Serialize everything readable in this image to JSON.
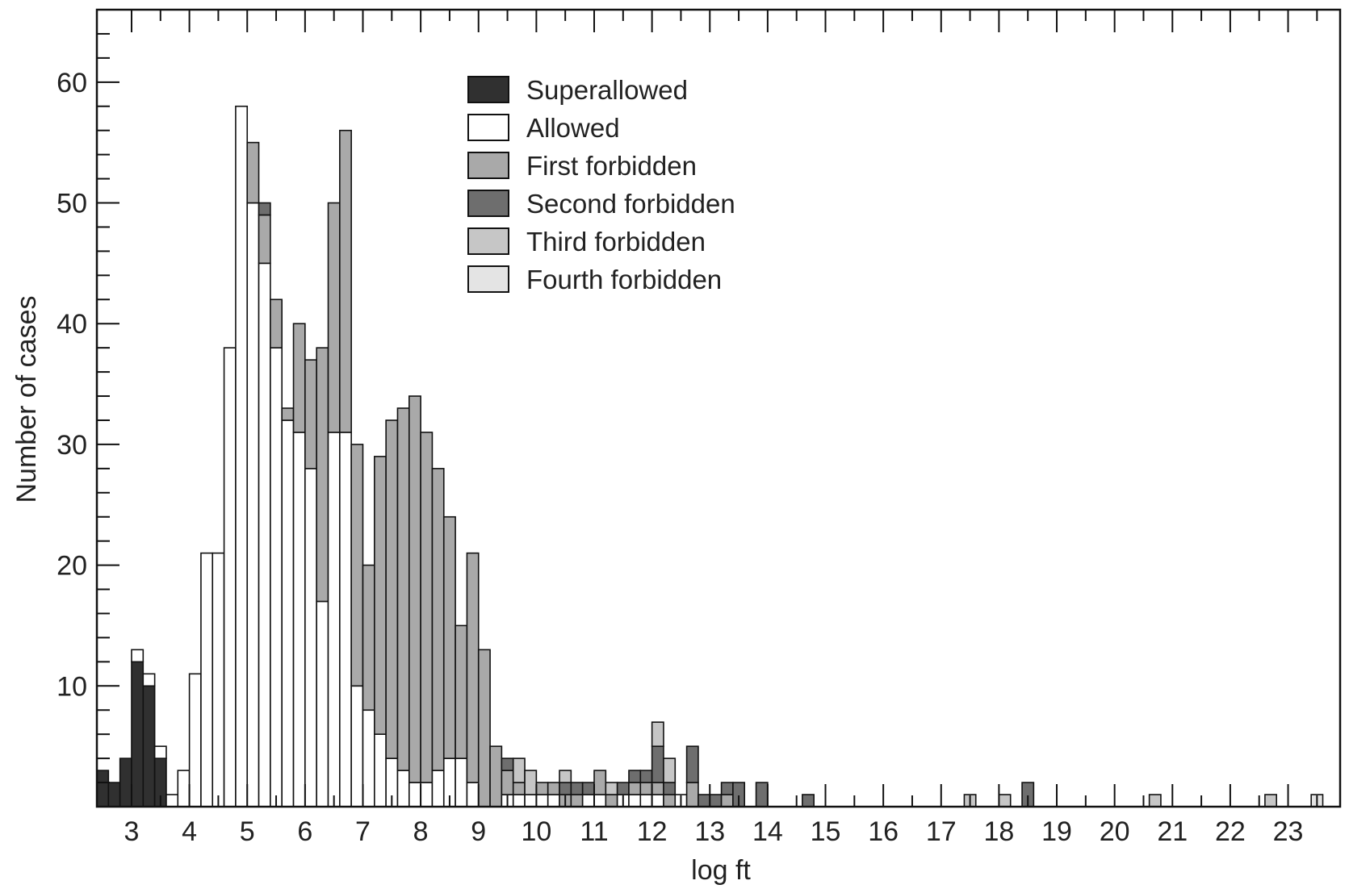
{
  "chart_data": {
    "type": "bar",
    "subtype": "stacked-histogram",
    "title": "",
    "xlabel": "log ft",
    "ylabel": "Number of cases",
    "xlim": [
      2.4,
      23.9
    ],
    "ylim": [
      0,
      66
    ],
    "x_ticks": [
      "3",
      "4",
      "5",
      "6",
      "7",
      "8",
      "9",
      "10",
      "11",
      "12",
      "13",
      "14",
      "15",
      "16",
      "17",
      "18",
      "19",
      "20",
      "21",
      "22",
      "23"
    ],
    "y_ticks": [
      "10",
      "20",
      "30",
      "40",
      "50",
      "60"
    ],
    "bin_width": 0.2,
    "grid": false,
    "legend_position": "top-center",
    "colors": {
      "Superallowed": "#303030",
      "Allowed": "#ffffff",
      "First forbidden": "#a9a9a9",
      "Second forbidden": "#6e6e6e",
      "Third forbidden": "#c6c6c6",
      "Fourth forbidden": "#e4e4e4"
    },
    "series": [
      {
        "name": "Superallowed",
        "x": [
          2.5,
          2.7,
          2.9,
          3.1,
          3.3,
          3.5,
          3.7
        ],
        "values": [
          3,
          2,
          4,
          12,
          10,
          4,
          0
        ]
      },
      {
        "name": "Allowed",
        "x": [
          3.1,
          3.3,
          3.5,
          3.7,
          3.9,
          4.1,
          4.3,
          4.5,
          4.7,
          4.9,
          5.1,
          5.3,
          5.5,
          5.7,
          5.9,
          6.1,
          6.3,
          6.5,
          6.7,
          6.9,
          7.1,
          7.3,
          7.5,
          7.7,
          7.9,
          8.1,
          8.3,
          8.5,
          8.7,
          8.9,
          9.1,
          9.3,
          9.5,
          9.7,
          9.9,
          10.1,
          10.3,
          10.5,
          10.7,
          10.9,
          11.1,
          11.3,
          11.5,
          11.7,
          11.9,
          12.1,
          12.3,
          12.5,
          12.7,
          12.9,
          13.1
        ],
        "values": [
          1,
          1,
          1,
          1,
          3,
          11,
          21,
          21,
          38,
          58,
          50,
          45,
          38,
          32,
          31,
          28,
          17,
          31,
          31,
          10,
          8,
          6,
          4,
          3,
          2,
          2,
          3,
          4,
          4,
          2,
          0,
          0,
          1,
          1,
          1,
          1,
          1,
          0,
          0,
          1,
          1,
          0,
          1,
          1,
          1,
          1,
          0,
          1,
          0,
          0,
          0
        ]
      },
      {
        "name": "First forbidden",
        "x": [
          5.1,
          5.3,
          5.5,
          5.7,
          5.9,
          6.1,
          6.3,
          6.5,
          6.7,
          6.9,
          7.1,
          7.3,
          7.5,
          7.7,
          7.9,
          8.1,
          8.3,
          8.5,
          8.7,
          8.9,
          9.1,
          9.3,
          9.5,
          9.7,
          9.9,
          10.1,
          10.3,
          10.5,
          10.7,
          10.9,
          11.1,
          11.3,
          11.5,
          11.7,
          11.9,
          12.1,
          12.3,
          12.5,
          12.7,
          12.9,
          13.1,
          13.3,
          13.5
        ],
        "values": [
          5,
          4,
          4,
          1,
          9,
          9,
          21,
          19,
          25,
          20,
          12,
          23,
          28,
          30,
          32,
          29,
          25,
          20,
          11,
          19,
          13,
          5,
          2,
          1,
          0,
          1,
          1,
          1,
          1,
          0,
          2,
          1,
          0,
          1,
          1,
          1,
          1,
          0,
          2,
          0,
          0,
          1,
          0
        ]
      },
      {
        "name": "Second forbidden",
        "x": [
          5.3,
          5.5,
          9.5,
          10.5,
          10.7,
          10.9,
          11.1,
          11.5,
          11.7,
          11.9,
          12.1,
          12.3,
          12.5,
          12.7,
          12.9,
          13.1,
          13.3,
          13.5,
          13.9,
          14.7,
          18.5
        ],
        "values": [
          1,
          0,
          1,
          1,
          1,
          1,
          0,
          1,
          1,
          1,
          3,
          1,
          0,
          3,
          1,
          1,
          1,
          2,
          2,
          1,
          2
        ]
      },
      {
        "name": "Third forbidden",
        "x": [
          9.7,
          9.9,
          10.5,
          11.3,
          12.1,
          12.3,
          17.5,
          18.1,
          20.7,
          22.7
        ],
        "values": [
          2,
          2,
          1,
          1,
          2,
          2,
          1,
          1,
          1,
          1
        ]
      },
      {
        "name": "Fourth forbidden",
        "x": [
          23.5
        ],
        "values": [
          1
        ]
      }
    ]
  }
}
